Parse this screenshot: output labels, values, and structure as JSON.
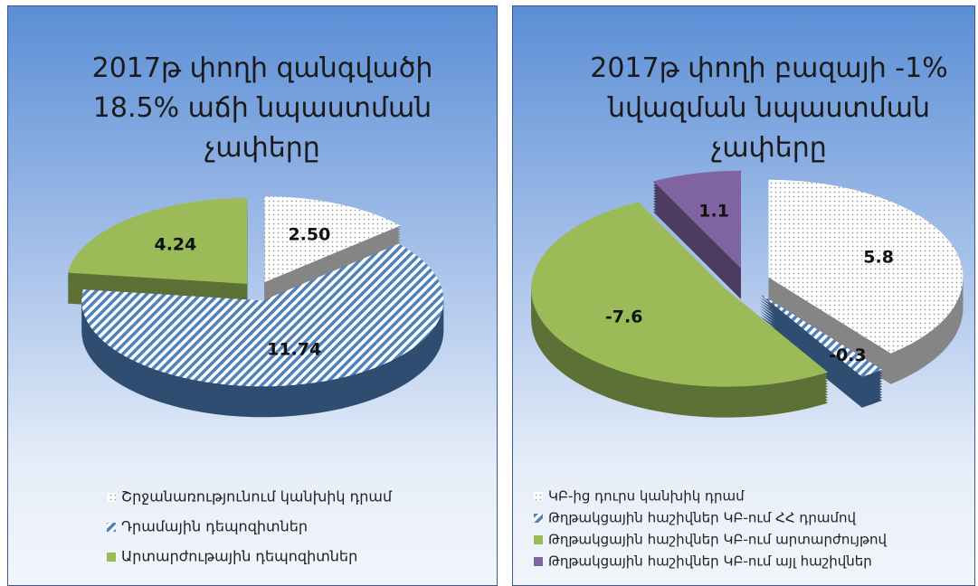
{
  "chart_data": [
    {
      "type": "pie",
      "title": "2017թ փողի զանգվածի 18.5% աճի նպաստման չափերը",
      "categories": [
        "Շրջանառությունում կանխիկ դրամ",
        "Դրամային դեպոզիտներ",
        "Արտարժութային դեպոզիտներ"
      ],
      "values": [
        2.5,
        11.74,
        4.24
      ],
      "value_labels": [
        "2.50",
        "11.74",
        "4.24"
      ],
      "colors": [
        "#ffffff",
        "#4f81bd",
        "#9bbb59"
      ],
      "patterns": [
        "dots",
        "stripes",
        "solid"
      ],
      "legend": "bottom"
    },
    {
      "type": "pie",
      "title": "2017թ փողի բազայի -1% նվազման նպաստման չափերը",
      "categories": [
        "ԿԲ-ից դուրս կանխիկ դրամ",
        "Թղթակցային հաշիվներ ԿԲ-ում ՀՀ դրամով",
        "Թղթակցային հաշիվներ ԿԲ-ում արտարժույթով",
        "Թղթակցային հաշիվներ ԿԲ-ում այլ հաշիվներ"
      ],
      "values": [
        5.8,
        -0.3,
        -7.6,
        1.1
      ],
      "colors": [
        "#ffffff",
        "#4f81bd",
        "#9bbb59",
        "#8064a2"
      ],
      "patterns": [
        "dots",
        "stripes",
        "solid",
        "solid"
      ],
      "legend": "bottom"
    }
  ]
}
